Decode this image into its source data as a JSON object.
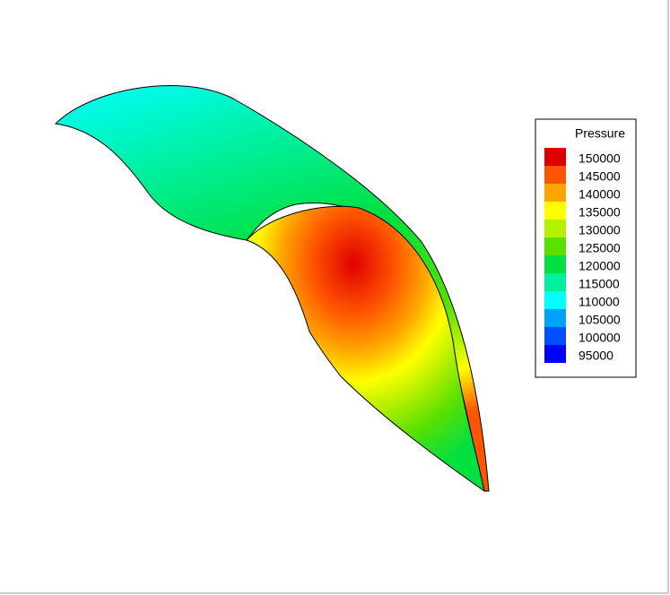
{
  "legend": {
    "title": "Pressure",
    "levels": [
      {
        "label": 150000,
        "color": "#e00000"
      },
      {
        "label": 145000,
        "color": "#ff5500"
      },
      {
        "label": 140000,
        "color": "#ffa500"
      },
      {
        "label": 135000,
        "color": "#ffff00"
      },
      {
        "label": 130000,
        "color": "#b4f000"
      },
      {
        "label": 125000,
        "color": "#5ae000"
      },
      {
        "label": 120000,
        "color": "#00e040"
      },
      {
        "label": 115000,
        "color": "#00f0a0"
      },
      {
        "label": 110000,
        "color": "#00ffff"
      },
      {
        "label": 105000,
        "color": "#00a0ff"
      },
      {
        "label": 100000,
        "color": "#0050ff"
      },
      {
        "label": 95000,
        "color": "#0000ff"
      }
    ]
  }
}
